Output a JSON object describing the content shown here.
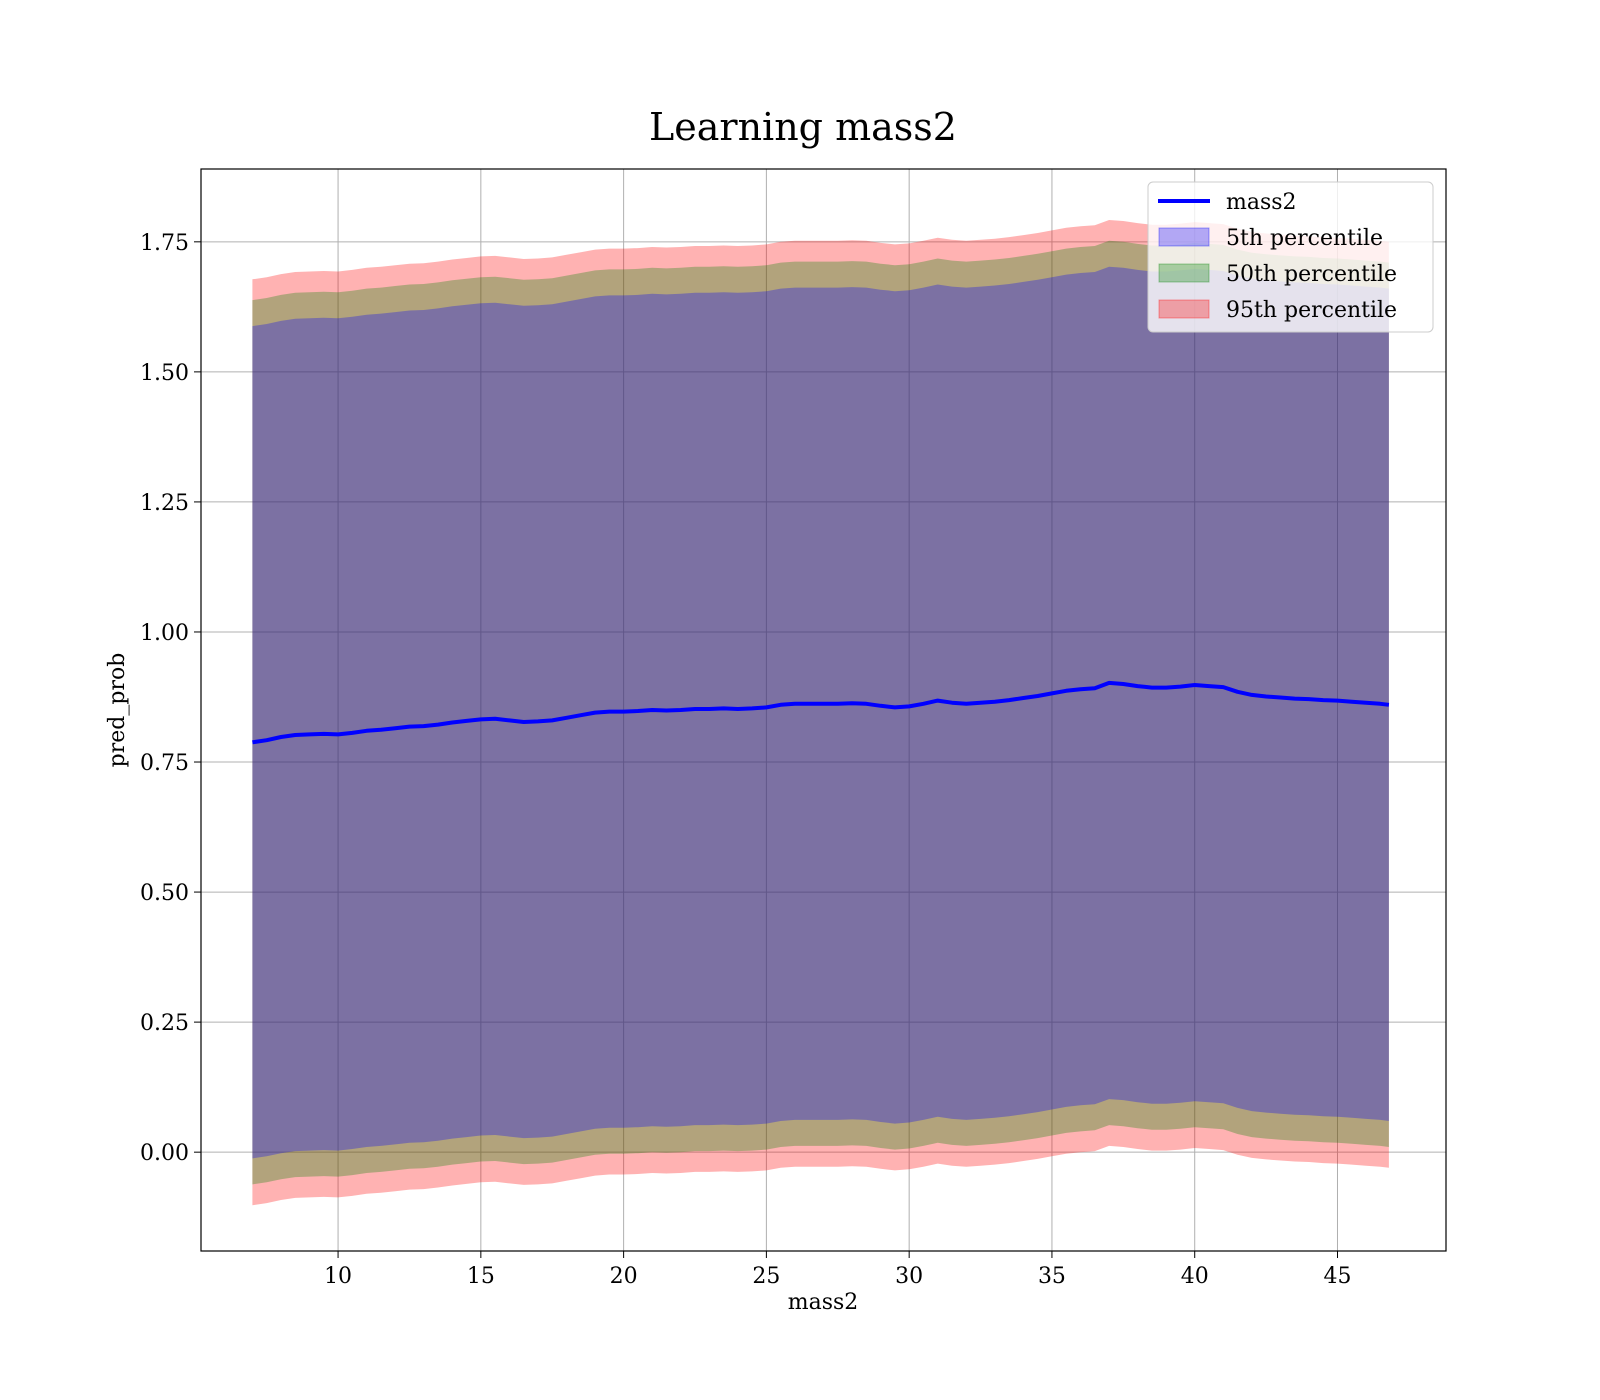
{
  "chart_data": {
    "type": "area",
    "title": "Learning mass2",
    "xlabel": "mass2",
    "ylabel": "pred_prob",
    "xlim": [
      5.2,
      48.8
    ],
    "ylim": [
      -0.19,
      1.89
    ],
    "xticks": [
      10,
      15,
      20,
      25,
      30,
      35,
      40,
      45
    ],
    "yticks": [
      0.0,
      0.25,
      0.5,
      0.75,
      1.0,
      1.25,
      1.5,
      1.75
    ],
    "ytick_labels": [
      "0.00",
      "0.25",
      "0.50",
      "0.75",
      "1.00",
      "1.25",
      "1.50",
      "1.75"
    ],
    "grid": true,
    "legend_position": "upper right",
    "x": [
      7.0,
      7.5,
      8.0,
      8.5,
      9.0,
      9.5,
      10.0,
      10.5,
      11.0,
      11.5,
      12.0,
      12.5,
      13.0,
      13.5,
      14.0,
      14.5,
      15.0,
      15.5,
      16.0,
      16.5,
      17.0,
      17.5,
      18.0,
      18.5,
      19.0,
      19.5,
      20.0,
      20.5,
      21.0,
      21.5,
      22.0,
      22.5,
      23.0,
      23.5,
      24.0,
      24.5,
      25.0,
      25.5,
      26.0,
      26.5,
      27.0,
      27.5,
      28.0,
      28.5,
      29.0,
      29.5,
      30.0,
      30.5,
      31.0,
      31.5,
      32.0,
      32.5,
      33.0,
      33.5,
      34.0,
      34.5,
      35.0,
      35.5,
      36.0,
      36.5,
      37.0,
      37.5,
      38.0,
      38.5,
      39.0,
      39.5,
      40.0,
      40.5,
      41.0,
      41.5,
      42.0,
      42.5,
      43.0,
      43.5,
      44.0,
      44.5,
      45.0,
      45.5,
      46.0,
      46.5,
      46.8
    ],
    "series": [
      {
        "name": "mass2",
        "kind": "line",
        "color": "#0000ff",
        "values": [
          0.788,
          0.792,
          0.798,
          0.802,
          0.803,
          0.804,
          0.803,
          0.806,
          0.81,
          0.812,
          0.815,
          0.818,
          0.819,
          0.822,
          0.826,
          0.829,
          0.832,
          0.833,
          0.83,
          0.827,
          0.828,
          0.83,
          0.835,
          0.84,
          0.845,
          0.847,
          0.847,
          0.848,
          0.85,
          0.849,
          0.85,
          0.852,
          0.852,
          0.853,
          0.852,
          0.853,
          0.855,
          0.86,
          0.862,
          0.862,
          0.862,
          0.862,
          0.863,
          0.862,
          0.858,
          0.855,
          0.857,
          0.862,
          0.868,
          0.864,
          0.862,
          0.864,
          0.866,
          0.869,
          0.873,
          0.877,
          0.882,
          0.887,
          0.89,
          0.892,
          0.902,
          0.9,
          0.896,
          0.893,
          0.893,
          0.895,
          0.898,
          0.896,
          0.894,
          0.885,
          0.879,
          0.876,
          0.874,
          0.872,
          0.871,
          0.869,
          0.868,
          0.866,
          0.864,
          0.862,
          0.86
        ]
      },
      {
        "name": "5th percentile",
        "kind": "band",
        "color": "#0000ff",
        "half_width": 0.8
      },
      {
        "name": "50th percentile",
        "kind": "band",
        "color": "#008000",
        "half_width": 0.85
      },
      {
        "name": "95th percentile",
        "kind": "band",
        "color": "#ff0000",
        "half_width": 0.89
      }
    ]
  },
  "legend": {
    "items": [
      {
        "label": "mass2",
        "swatch": "line",
        "color": "#0000ff"
      },
      {
        "label": "5th percentile",
        "swatch": "patch",
        "color": "#0000ff"
      },
      {
        "label": "50th percentile",
        "swatch": "patch",
        "color": "#008000"
      },
      {
        "label": "95th percentile",
        "swatch": "patch",
        "color": "#ff0000"
      }
    ]
  }
}
